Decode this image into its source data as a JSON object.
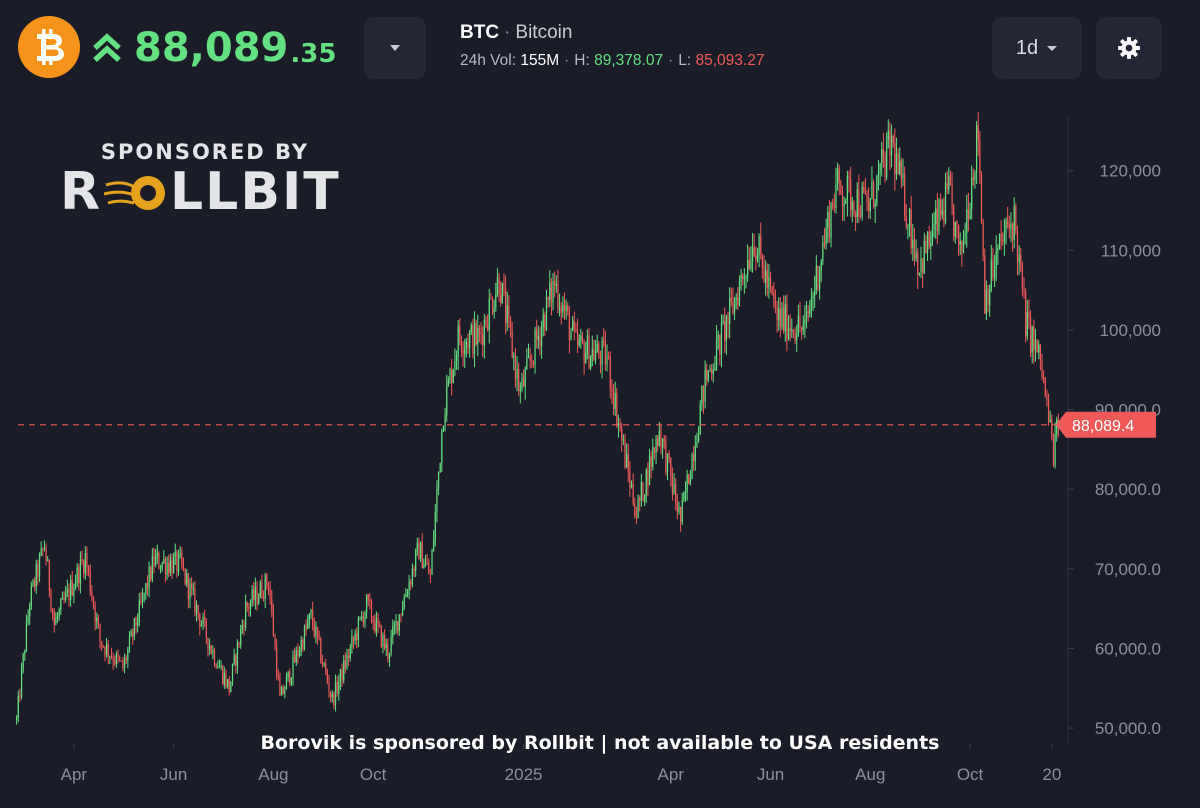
{
  "header": {
    "coin_icon": "bitcoin-icon",
    "trend_icon": "double-chevron-up-icon",
    "price_main": "88,089",
    "price_decimals": ".35",
    "dropdown_icon": "caret-down-icon",
    "pair_symbol": "BTC",
    "pair_separator": "·",
    "pair_name": "Bitcoin",
    "vol_label": "24h Vol:",
    "vol_value": "155M",
    "high_label": "H:",
    "high_value": "89,378.07",
    "low_label": "L:",
    "low_value": "85,093.27",
    "interval": "1d",
    "interval_icon": "caret-down-icon",
    "settings_icon": "gear-icon",
    "colors": {
      "bitcoin_orange": "#f7931a",
      "up_green": "#63e07f",
      "down_red": "#ef5a58",
      "background": "#1a1c27",
      "button_bg": "#232634"
    }
  },
  "sponsor": {
    "top_text": "SPONSORED BY",
    "logo_left": "R",
    "logo_right": "LLBIT"
  },
  "disclaimer": "Borovik is sponsored by Rollbit | not available to USA residents",
  "chart_data": {
    "type": "candlestick",
    "interval": "1d",
    "y_axis": {
      "ticks": [
        50000,
        60000,
        70000,
        80000,
        90000,
        100000,
        110000,
        120000
      ],
      "tick_labels": [
        "50,000.0",
        "60,000.0",
        "70,000.0",
        "80,000.0",
        "90,000.0",
        "100,000",
        "110,000",
        "120,000"
      ],
      "range": [
        48500,
        127000
      ]
    },
    "x_axis": {
      "tick_labels": [
        "Apr",
        "Jun",
        "Aug",
        "Oct",
        "2025",
        "Apr",
        "Jun",
        "Aug",
        "Oct",
        "20"
      ],
      "tick_dates": [
        "2024-04-01",
        "2024-06-01",
        "2024-08-01",
        "2024-10-01",
        "2025-01-01",
        "2025-04-01",
        "2025-06-01",
        "2025-08-01",
        "2025-10-01",
        "2025-11-20"
      ],
      "range": [
        "2024-02-25",
        "2025-11-25"
      ]
    },
    "current_price": 88089.35,
    "current_price_label": "88,089.4",
    "colors": {
      "up": "#63e07f",
      "down": "#ef5a58",
      "price_line": "#ef5a58"
    },
    "close_path": [
      [
        "2024-02-26",
        51000
      ],
      [
        "2024-03-05",
        66000
      ],
      [
        "2024-03-14",
        73000
      ],
      [
        "2024-03-20",
        63000
      ],
      [
        "2024-04-08",
        71500
      ],
      [
        "2024-04-17",
        61000
      ],
      [
        "2024-05-01",
        57500
      ],
      [
        "2024-05-20",
        71000
      ],
      [
        "2024-06-05",
        70500
      ],
      [
        "2024-06-24",
        60000
      ],
      [
        "2024-07-05",
        55000
      ],
      [
        "2024-07-15",
        65000
      ],
      [
        "2024-07-29",
        68500
      ],
      [
        "2024-08-05",
        53500
      ],
      [
        "2024-08-24",
        64000
      ],
      [
        "2024-09-06",
        53500
      ],
      [
        "2024-09-27",
        65500
      ],
      [
        "2024-10-10",
        59500
      ],
      [
        "2024-10-29",
        72500
      ],
      [
        "2024-11-05",
        69000
      ],
      [
        "2024-11-13",
        90000
      ],
      [
        "2024-11-22",
        99000
      ],
      [
        "2024-12-05",
        99000
      ],
      [
        "2024-12-17",
        106500
      ],
      [
        "2024-12-30",
        92000
      ],
      [
        "2025-01-20",
        106000
      ],
      [
        "2025-02-02",
        98000
      ],
      [
        "2025-02-21",
        96500
      ],
      [
        "2025-03-04",
        84000
      ],
      [
        "2025-03-11",
        77000
      ],
      [
        "2025-03-25",
        87500
      ],
      [
        "2025-04-07",
        76000
      ],
      [
        "2025-04-22",
        93500
      ],
      [
        "2025-05-09",
        103000
      ],
      [
        "2025-05-22",
        111500
      ],
      [
        "2025-06-05",
        101500
      ],
      [
        "2025-06-22",
        100000
      ],
      [
        "2025-07-11",
        118000
      ],
      [
        "2025-07-31",
        115500
      ],
      [
        "2025-08-14",
        123500
      ],
      [
        "2025-08-31",
        108000
      ],
      [
        "2025-09-18",
        117000
      ],
      [
        "2025-09-25",
        109000
      ],
      [
        "2025-10-06",
        125000
      ],
      [
        "2025-10-10",
        104000
      ],
      [
        "2025-10-20",
        111000
      ],
      [
        "2025-10-28",
        114000
      ],
      [
        "2025-11-04",
        101000
      ],
      [
        "2025-11-13",
        96000
      ],
      [
        "2025-11-21",
        84500
      ],
      [
        "2025-11-24",
        88089
      ]
    ]
  }
}
